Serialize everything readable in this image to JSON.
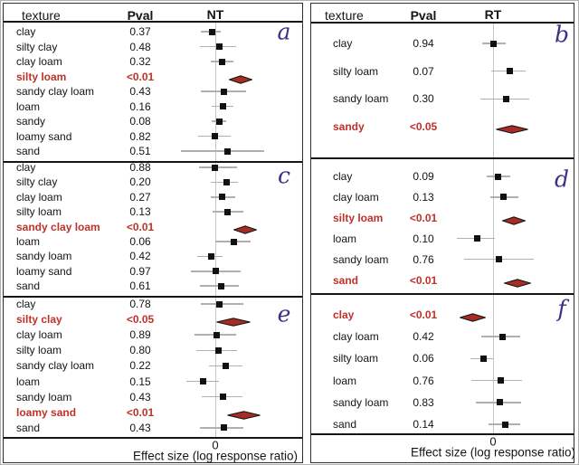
{
  "figure": {
    "colors": {
      "significant_text": "#c0312a",
      "diamond_fill": "#a72c23",
      "diamond_stroke": "#161616",
      "marker": "#111111",
      "ci_line": "#b7aeab",
      "zero_line": "#c6c6c6",
      "divider": "#151515",
      "panel_letter": "#3d3084",
      "text": "#141414"
    }
  },
  "chart_data": {
    "type": "forest",
    "xlabel": "Effect size (log response ratio)",
    "x_ticks": [
      "0"
    ],
    "axis_note": "only the 0 tick is labeled; est/lo/hi are digitized horizontal offsets (px) from the zero reference line; diamond = significant pooled effect",
    "panels": [
      {
        "header": {
          "texture": "texture",
          "pval": "Pval",
          "treatment": "NT"
        },
        "sections": [
          {
            "letter": "a",
            "rows": [
              {
                "label": "clay",
                "pval": "0.37",
                "significant": false,
                "shape": "square",
                "est": -4,
                "lo": -16,
                "hi": 6
              },
              {
                "label": "silty clay",
                "pval": "0.48",
                "significant": false,
                "shape": "square",
                "est": 4,
                "lo": -17,
                "hi": 23
              },
              {
                "label": "clay loam",
                "pval": "0.32",
                "significant": false,
                "shape": "square",
                "est": 7,
                "lo": -5,
                "hi": 20
              },
              {
                "label": "silty loam",
                "pval": "<0.01",
                "significant": true,
                "shape": "diamond",
                "est": 28,
                "lo": 15,
                "hi": 41
              },
              {
                "label": "sandy clay loam",
                "pval": "0.43",
                "significant": false,
                "shape": "square",
                "est": 9,
                "lo": -16,
                "hi": 34
              },
              {
                "label": "loam",
                "pval": "0.16",
                "significant": false,
                "shape": "square",
                "est": 8,
                "lo": -4,
                "hi": 20
              },
              {
                "label": "sandy",
                "pval": "0.08",
                "significant": false,
                "shape": "square",
                "est": 4,
                "lo": -4,
                "hi": 12
              },
              {
                "label": "loamy sand",
                "pval": "0.82",
                "significant": false,
                "shape": "square",
                "est": -1,
                "lo": -19,
                "hi": 17
              },
              {
                "label": "sand",
                "pval": "0.51",
                "significant": false,
                "shape": "square",
                "est": 13,
                "lo": -38,
                "hi": 54
              }
            ]
          },
          {
            "letter": "c",
            "rows": [
              {
                "label": "clay",
                "pval": "0.88",
                "significant": false,
                "shape": "square",
                "est": -1,
                "lo": -18,
                "hi": 24
              },
              {
                "label": "silty clay",
                "pval": "0.20",
                "significant": false,
                "shape": "square",
                "est": 12,
                "lo": -5,
                "hi": 25
              },
              {
                "label": "clay loam",
                "pval": "0.27",
                "significant": false,
                "shape": "square",
                "est": 7,
                "lo": -5,
                "hi": 22
              },
              {
                "label": "silty loam",
                "pval": "0.13",
                "significant": false,
                "shape": "square",
                "est": 13,
                "lo": -3,
                "hi": 31
              },
              {
                "label": "sandy clay loam",
                "pval": "<0.01",
                "significant": true,
                "shape": "diamond",
                "est": 33,
                "lo": 20,
                "hi": 46
              },
              {
                "label": "loam",
                "pval": "0.06",
                "significant": false,
                "shape": "square",
                "est": 20,
                "lo": 0,
                "hi": 39
              },
              {
                "label": "sandy loam",
                "pval": "0.42",
                "significant": false,
                "shape": "square",
                "est": -5,
                "lo": -20,
                "hi": 8
              },
              {
                "label": "loamy sand",
                "pval": "0.97",
                "significant": false,
                "shape": "square",
                "est": 0,
                "lo": -27,
                "hi": 28
              },
              {
                "label": "sand",
                "pval": "0.61",
                "significant": false,
                "shape": "square",
                "est": 6,
                "lo": -17,
                "hi": 26
              }
            ]
          },
          {
            "letter": "e",
            "rows": [
              {
                "label": "clay",
                "pval": "0.78",
                "significant": false,
                "shape": "square",
                "est": 4,
                "lo": -16,
                "hi": 31
              },
              {
                "label": "silty clay",
                "pval": "<0.05",
                "significant": true,
                "shape": "diamond",
                "est": 21,
                "lo": 1,
                "hi": 39
              },
              {
                "label": "clay loam",
                "pval": "0.89",
                "significant": false,
                "shape": "square",
                "est": 1,
                "lo": -23,
                "hi": 23
              },
              {
                "label": "silty loam",
                "pval": "0.80",
                "significant": false,
                "shape": "square",
                "est": 3,
                "lo": -21,
                "hi": 24
              },
              {
                "label": "sandy clay loam",
                "pval": "0.22",
                "significant": false,
                "shape": "square",
                "est": 11,
                "lo": -7,
                "hi": 30
              },
              {
                "label": "loam",
                "pval": "0.15",
                "significant": false,
                "shape": "square",
                "est": -14,
                "lo": -32,
                "hi": 4
              },
              {
                "label": "sandy loam",
                "pval": "0.43",
                "significant": false,
                "shape": "square",
                "est": 8,
                "lo": -15,
                "hi": 30
              },
              {
                "label": "loamy sand",
                "pval": "<0.01",
                "significant": true,
                "shape": "diamond",
                "est": 30,
                "lo": 13,
                "hi": 50
              },
              {
                "label": "sand",
                "pval": "0.43",
                "significant": false,
                "shape": "square",
                "est": 9,
                "lo": -17,
                "hi": 31
              }
            ]
          }
        ]
      },
      {
        "header": {
          "texture": "texture",
          "pval": "Pval",
          "treatment": "RT"
        },
        "sections": [
          {
            "letter": "b",
            "rows": [
              {
                "label": "clay",
                "pval": "0.94",
                "significant": false,
                "shape": "square",
                "est": 0,
                "lo": -12,
                "hi": 14
              },
              {
                "label": "silty loam",
                "pval": "0.07",
                "significant": false,
                "shape": "square",
                "est": 18,
                "lo": -2,
                "hi": 36
              },
              {
                "label": "sandy loam",
                "pval": "0.30",
                "significant": false,
                "shape": "square",
                "est": 14,
                "lo": -14,
                "hi": 40
              },
              {
                "label": "sandy",
                "pval": "<0.05",
                "significant": true,
                "shape": "diamond",
                "est": 20,
                "lo": 3,
                "hi": 39
              }
            ]
          },
          {
            "letter": "d",
            "rows": [
              {
                "label": "clay",
                "pval": "0.09",
                "significant": false,
                "shape": "square",
                "est": 5,
                "lo": -7,
                "hi": 19
              },
              {
                "label": "clay loam",
                "pval": "0.13",
                "significant": false,
                "shape": "square",
                "est": 11,
                "lo": -3,
                "hi": 28
              },
              {
                "label": "silty loam",
                "pval": "<0.01",
                "significant": true,
                "shape": "diamond",
                "est": 24,
                "lo": 10,
                "hi": 36
              },
              {
                "label": "loam",
                "pval": "0.10",
                "significant": false,
                "shape": "square",
                "est": -18,
                "lo": -40,
                "hi": 2
              },
              {
                "label": "sandy loam",
                "pval": "0.76",
                "significant": false,
                "shape": "square",
                "est": 6,
                "lo": -32,
                "hi": 45
              },
              {
                "label": "sand",
                "pval": "<0.01",
                "significant": true,
                "shape": "diamond",
                "est": 27,
                "lo": 12,
                "hi": 42
              }
            ]
          },
          {
            "letter": "f",
            "rows": [
              {
                "label": "clay",
                "pval": "<0.01",
                "significant": true,
                "shape": "diamond",
                "est": -22,
                "lo": -37,
                "hi": -8
              },
              {
                "label": "clay loam",
                "pval": "0.42",
                "significant": false,
                "shape": "square",
                "est": 10,
                "lo": -13,
                "hi": 30
              },
              {
                "label": "silty loam",
                "pval": "0.06",
                "significant": false,
                "shape": "square",
                "est": -11,
                "lo": -25,
                "hi": 0
              },
              {
                "label": "loam",
                "pval": "0.76",
                "significant": false,
                "shape": "square",
                "est": 8,
                "lo": -24,
                "hi": 32
              },
              {
                "label": "sandy loam",
                "pval": "0.83",
                "significant": false,
                "shape": "square",
                "est": 7,
                "lo": -19,
                "hi": 31
              },
              {
                "label": "sand",
                "pval": "0.14",
                "significant": false,
                "shape": "square",
                "est": 13,
                "lo": -5,
                "hi": 30
              }
            ]
          }
        ]
      }
    ]
  }
}
